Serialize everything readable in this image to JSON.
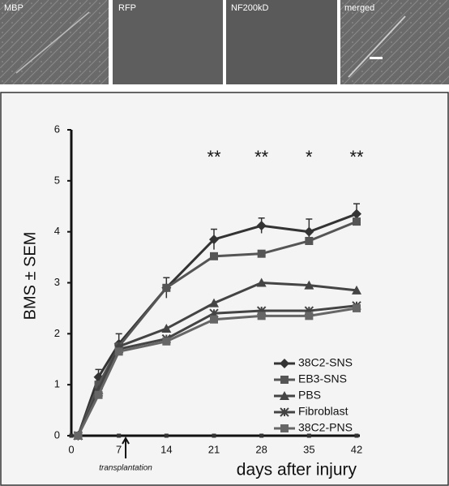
{
  "panels": [
    {
      "label": "MBP"
    },
    {
      "label": "RFP"
    },
    {
      "label": "NF200kD"
    },
    {
      "label": "merged"
    }
  ],
  "chart_data": {
    "type": "line",
    "x_label": "days after injury",
    "y_label": "BMS ± SEM",
    "x": [
      1,
      4,
      7,
      14,
      21,
      28,
      35,
      42
    ],
    "xlim": [
      0,
      42
    ],
    "xticks": [
      0,
      7,
      14,
      21,
      28,
      35,
      42
    ],
    "ylim": [
      0,
      6
    ],
    "yticks": [
      0,
      1,
      2,
      3,
      4,
      5,
      6
    ],
    "grid": false,
    "legend": "lower right",
    "series": [
      {
        "name": "38C2-SNS",
        "color": "#333333",
        "marker": "diamond",
        "values": [
          0,
          1.15,
          1.8,
          2.9,
          3.85,
          4.12,
          4.0,
          4.35
        ],
        "errors": [
          0,
          0.15,
          0.2,
          0.2,
          0.2,
          0.15,
          0.25,
          0.2
        ]
      },
      {
        "name": "EB3-SNS",
        "color": "#555555",
        "marker": "square",
        "values": [
          0,
          1.0,
          1.75,
          2.9,
          3.52,
          3.57,
          3.82,
          4.2
        ]
      },
      {
        "name": "PBS",
        "color": "#444444",
        "marker": "triangle",
        "values": [
          0,
          0.9,
          1.75,
          2.1,
          2.6,
          3.0,
          2.95,
          2.85
        ]
      },
      {
        "name": "Fibroblast",
        "color": "#444444",
        "marker": "cross",
        "values": [
          0,
          0.85,
          1.7,
          1.9,
          2.4,
          2.45,
          2.45,
          2.55
        ]
      },
      {
        "name": "38C2-PNS",
        "color": "#666666",
        "marker": "square",
        "values": [
          0,
          0.8,
          1.65,
          1.85,
          2.28,
          2.35,
          2.35,
          2.5
        ]
      }
    ],
    "annotations": [
      {
        "text": "**",
        "x": 21
      },
      {
        "text": "**",
        "x": 28
      },
      {
        "text": "*",
        "x": 35
      },
      {
        "text": "**",
        "x": 42
      }
    ],
    "arrow_note": {
      "text": "transplantation",
      "x": 8
    }
  }
}
